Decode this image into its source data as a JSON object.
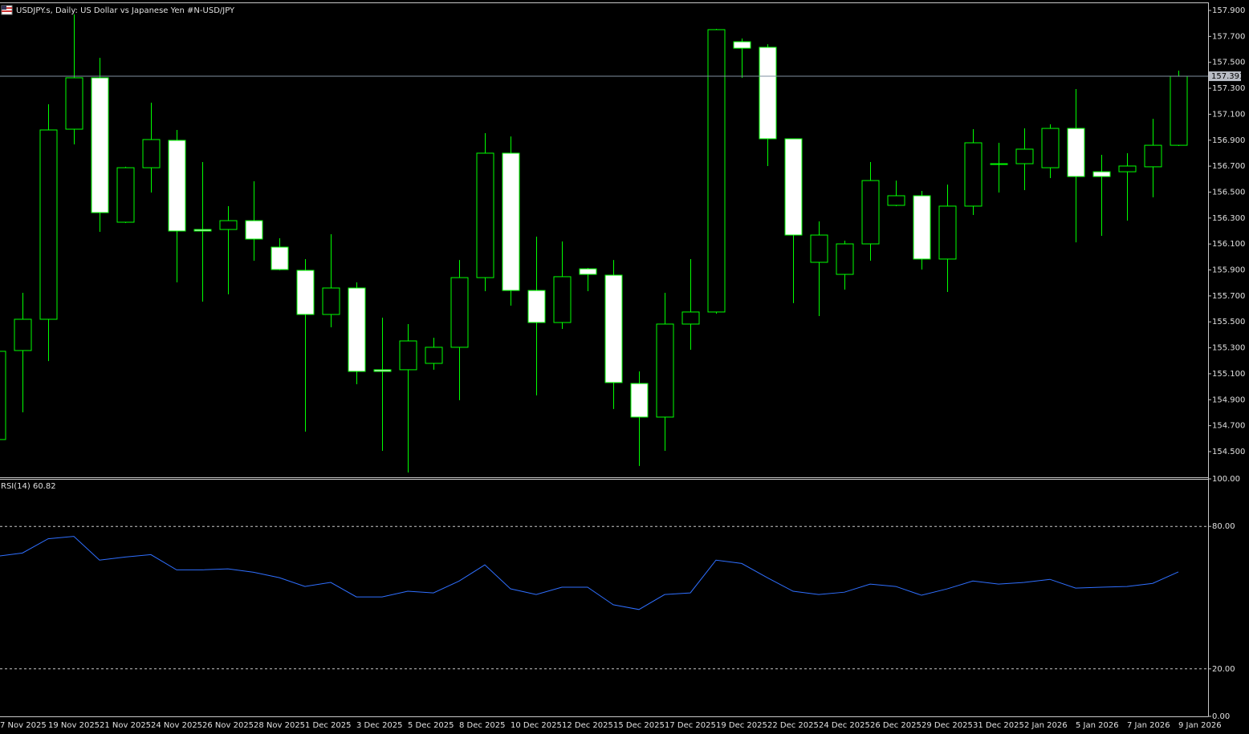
{
  "chart_data": [
    {
      "type": "candlestick",
      "title": "USDJPY.s, Daily:  US Dollar vs  Japanese Yen #N-USD/JPY",
      "categories": [
        "7 Nov 2025",
        null,
        "19 Nov 2025",
        null,
        "21 Nov 2025",
        null,
        "24 Nov 2025",
        null,
        "26 Nov 2025",
        null,
        "28 Nov 2025",
        null,
        "1 Dec 2025",
        null,
        "3 Dec 2025",
        null,
        "5 Dec 2025",
        null,
        "8 Dec 2025",
        null,
        "10 Dec 2025",
        null,
        "12 Dec 2025",
        null,
        "15 Dec 2025",
        null,
        "17 Dec 2025",
        null,
        "19 Dec 2025",
        null,
        "22 Dec 2025",
        null,
        "24 Dec 2025",
        null,
        "26 Dec 2025",
        null,
        "29 Dec 2025",
        null,
        "31 Dec 2025",
        null,
        "2 Jan 2026",
        null,
        "5 Jan 2026",
        null,
        "7 Jan 2026",
        null,
        "9 Jan 2026"
      ],
      "open": [
        154.593,
        155.279,
        155.52,
        156.985,
        157.381,
        156.268,
        156.688,
        156.899,
        156.212,
        156.212,
        156.28,
        156.076,
        155.897,
        155.557,
        155.761,
        155.131,
        155.131,
        155.18,
        155.304,
        155.841,
        156.8,
        155.742,
        155.495,
        155.909,
        155.86,
        155.025,
        154.766,
        155.483,
        155.576,
        157.659,
        157.616,
        156.911,
        155.959,
        155.866,
        156.101,
        156.398,
        156.472,
        155.984,
        156.392,
        156.713,
        156.719,
        156.688,
        156.991,
        156.657,
        156.657,
        156.695,
        156.861
      ],
      "high": [
        155.322,
        155.724,
        157.177,
        157.869,
        157.535,
        156.695,
        157.189,
        156.979,
        156.732,
        156.392,
        156.583,
        156.144,
        155.984,
        156.175,
        155.804,
        155.532,
        155.483,
        155.378,
        155.977,
        156.954,
        156.929,
        156.157,
        156.12,
        155.916,
        155.977,
        155.118,
        155.724,
        155.984,
        157.758,
        157.684,
        157.64,
        156.911,
        156.274,
        156.126,
        156.732,
        156.589,
        156.509,
        156.558,
        156.985,
        156.88,
        156.991,
        157.022,
        157.294,
        156.787,
        156.8,
        157.065,
        157.436
      ],
      "low": [
        154.58,
        154.803,
        155.198,
        156.868,
        156.194,
        156.262,
        156.497,
        155.804,
        155.656,
        155.712,
        155.971,
        155.897,
        154.654,
        155.458,
        155.019,
        154.506,
        154.339,
        155.131,
        154.896,
        155.736,
        155.625,
        154.933,
        155.446,
        155.736,
        154.828,
        154.389,
        154.506,
        155.285,
        155.563,
        157.381,
        156.701,
        155.644,
        155.545,
        155.749,
        155.971,
        156.392,
        155.903,
        155.73,
        156.324,
        156.497,
        156.515,
        156.608,
        156.113,
        156.163,
        156.28,
        156.46,
        156.855
      ],
      "close": [
        155.273,
        155.52,
        156.979,
        157.381,
        156.342,
        156.688,
        156.905,
        156.2,
        156.2,
        156.28,
        156.138,
        155.903,
        155.557,
        155.761,
        155.118,
        155.118,
        155.353,
        155.304,
        155.841,
        156.8,
        155.742,
        155.495,
        155.848,
        155.866,
        155.032,
        154.766,
        155.483,
        155.576,
        157.752,
        157.609,
        156.911,
        156.169,
        156.169,
        156.101,
        156.589,
        156.472,
        155.984,
        156.392,
        156.88,
        156.719,
        156.831,
        156.991,
        156.62,
        156.62,
        156.701,
        156.861,
        157.393
      ],
      "up_color": "#000000",
      "down_color": "#ffffff",
      "outline_color": "#00ff00",
      "last_price": 157.393,
      "last_price_color": "#7f8fa0",
      "ylim": [
        154.302,
        157.962
      ],
      "yticks": [
        {
          "value": 154.5,
          "label": "154.500"
        },
        {
          "value": 154.7,
          "label": "154.700"
        },
        {
          "value": 154.9,
          "label": "154.900"
        },
        {
          "value": 155.1,
          "label": "155.100"
        },
        {
          "value": 155.3,
          "label": "155.300"
        },
        {
          "value": 155.5,
          "label": "155.500"
        },
        {
          "value": 155.7,
          "label": "155.700"
        },
        {
          "value": 155.9,
          "label": "155.900"
        },
        {
          "value": 156.1,
          "label": "156.100"
        },
        {
          "value": 156.3,
          "label": "156.300"
        },
        {
          "value": 156.5,
          "label": "156.500"
        },
        {
          "value": 156.7,
          "label": "156.700"
        },
        {
          "value": 156.9,
          "label": "156.900"
        },
        {
          "value": 157.1,
          "label": "157.100"
        },
        {
          "value": 157.3,
          "label": "157.300"
        },
        {
          "value": 157.5,
          "label": "157.500"
        },
        {
          "value": 157.7,
          "label": "157.700"
        },
        {
          "value": 157.9,
          "label": "157.900"
        }
      ]
    },
    {
      "type": "line",
      "title": "RSI(14) 60.82",
      "color": "#2f6fff",
      "values": [
        67.4,
        68.8,
        74.8,
        75.8,
        65.8,
        67.1,
        68.1,
        61.7,
        61.7,
        62.1,
        60.7,
        58.4,
        54.7,
        56.4,
        50.3,
        50.3,
        52.7,
        52.0,
        57.0,
        63.8,
        53.7,
        51.3,
        54.4,
        54.4,
        47.0,
        45.0,
        51.3,
        52.0,
        65.8,
        64.4,
        58.4,
        52.7,
        51.3,
        52.3,
        55.7,
        54.7,
        51.0,
        53.7,
        57.0,
        55.7,
        56.4,
        57.7,
        54.0,
        54.4,
        54.7,
        56.0,
        60.82
      ],
      "ylim": [
        0,
        100
      ],
      "yticks": [
        {
          "value": 0,
          "label": "0.00"
        },
        {
          "value": 20,
          "label": "20.00"
        },
        {
          "value": 80,
          "label": "80.00"
        },
        {
          "value": 100,
          "label": "100.00"
        }
      ],
      "dashed_levels": [
        20,
        80
      ]
    }
  ]
}
